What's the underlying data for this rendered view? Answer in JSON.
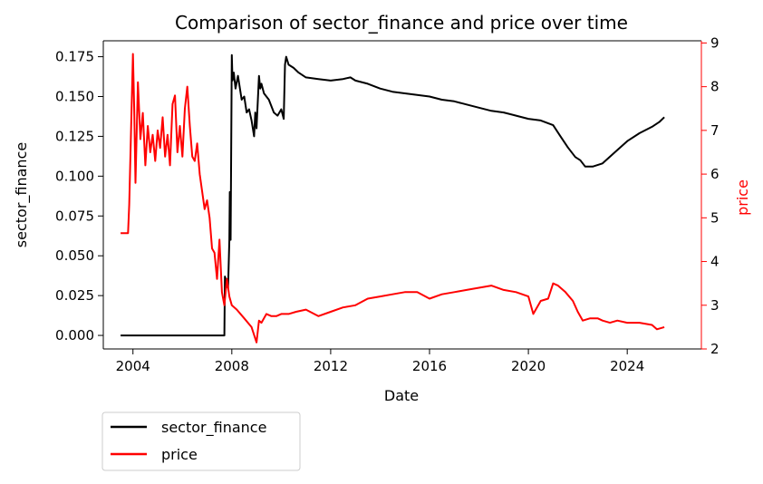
{
  "chart_data": {
    "type": "line",
    "title": "Comparison of sector_finance and price over time",
    "xlabel": "Date",
    "ylabel_left": "sector_finance",
    "ylabel_right": "price",
    "xlim": [
      2002.8,
      2027.0
    ],
    "ylim_left": [
      -0.0085,
      0.185
    ],
    "ylim_right": [
      2.0,
      9.05
    ],
    "x_ticks": [
      "2004",
      "2008",
      "2012",
      "2016",
      "2020",
      "2024"
    ],
    "y_left_ticks": [
      "0.000",
      "0.025",
      "0.050",
      "0.075",
      "0.100",
      "0.125",
      "0.150",
      "0.175"
    ],
    "y_right_ticks": [
      "2",
      "3",
      "4",
      "5",
      "6",
      "7",
      "8",
      "9"
    ],
    "grid": false,
    "legend_position": "below-left",
    "colors": {
      "sector_finance": "#000000",
      "price": "#ff0000",
      "right_axis": "#ff0000"
    },
    "series": [
      {
        "name": "sector_finance",
        "axis": "left",
        "x": [
          2003.5,
          2004.0,
          2005.0,
          2006.0,
          2007.0,
          2007.6,
          2007.7,
          2007.72,
          2007.8,
          2007.85,
          2007.9,
          2007.92,
          2007.95,
          2008.0,
          2008.03,
          2008.08,
          2008.15,
          2008.25,
          2008.4,
          2008.5,
          2008.6,
          2008.7,
          2008.8,
          2008.9,
          2008.95,
          2009.0,
          2009.1,
          2009.15,
          2009.2,
          2009.3,
          2009.5,
          2009.7,
          2009.85,
          2010.0,
          2010.1,
          2010.15,
          2010.2,
          2010.3,
          2010.5,
          2010.7,
          2011.0,
          2011.5,
          2012.0,
          2012.5,
          2012.8,
          2013.0,
          2013.5,
          2014.0,
          2014.5,
          2015.0,
          2015.5,
          2016.0,
          2016.5,
          2017.0,
          2017.5,
          2018.0,
          2018.5,
          2019.0,
          2019.5,
          2020.0,
          2020.5,
          2021.0,
          2021.3,
          2021.6,
          2021.9,
          2022.1,
          2022.3,
          2022.6,
          2023.0,
          2023.5,
          2024.0,
          2024.5,
          2025.0,
          2025.3,
          2025.5
        ],
        "y": [
          0.0,
          0.0,
          0.0,
          0.0,
          0.0,
          0.0,
          0.0,
          0.037,
          0.033,
          0.03,
          0.06,
          0.09,
          0.06,
          0.176,
          0.16,
          0.165,
          0.155,
          0.163,
          0.148,
          0.15,
          0.14,
          0.142,
          0.135,
          0.125,
          0.14,
          0.13,
          0.163,
          0.155,
          0.158,
          0.152,
          0.148,
          0.14,
          0.138,
          0.142,
          0.136,
          0.17,
          0.175,
          0.17,
          0.168,
          0.165,
          0.162,
          0.161,
          0.16,
          0.161,
          0.162,
          0.16,
          0.158,
          0.155,
          0.153,
          0.152,
          0.151,
          0.15,
          0.148,
          0.147,
          0.145,
          0.143,
          0.141,
          0.14,
          0.138,
          0.136,
          0.135,
          0.132,
          0.125,
          0.118,
          0.112,
          0.11,
          0.106,
          0.106,
          0.108,
          0.115,
          0.122,
          0.127,
          0.131,
          0.134,
          0.137
        ]
      },
      {
        "name": "price",
        "axis": "right",
        "x": [
          2003.5,
          2003.8,
          2003.85,
          2004.0,
          2004.05,
          2004.1,
          2004.2,
          2004.3,
          2004.4,
          2004.5,
          2004.6,
          2004.7,
          2004.8,
          2004.9,
          2005.0,
          2005.1,
          2005.2,
          2005.3,
          2005.4,
          2005.5,
          2005.6,
          2005.7,
          2005.8,
          2005.9,
          2006.0,
          2006.1,
          2006.2,
          2006.3,
          2006.4,
          2006.5,
          2006.6,
          2006.7,
          2006.8,
          2006.9,
          2007.0,
          2007.1,
          2007.2,
          2007.3,
          2007.4,
          2007.5,
          2007.6,
          2007.7,
          2007.8,
          2007.9,
          2008.0,
          2008.2,
          2008.5,
          2008.8,
          2009.0,
          2009.1,
          2009.2,
          2009.4,
          2009.6,
          2009.8,
          2010.0,
          2010.3,
          2010.6,
          2011.0,
          2011.5,
          2012.0,
          2012.5,
          2013.0,
          2013.5,
          2014.0,
          2014.5,
          2015.0,
          2015.5,
          2016.0,
          2016.5,
          2017.0,
          2017.5,
          2018.0,
          2018.5,
          2019.0,
          2019.5,
          2020.0,
          2020.2,
          2020.5,
          2020.8,
          2021.0,
          2021.2,
          2021.5,
          2021.8,
          2022.0,
          2022.2,
          2022.5,
          2022.8,
          2023.0,
          2023.3,
          2023.6,
          2024.0,
          2024.5,
          2025.0,
          2025.2,
          2025.5
        ],
        "y": [
          4.65,
          4.65,
          5.3,
          8.75,
          7.5,
          5.8,
          8.1,
          6.8,
          7.4,
          6.2,
          7.1,
          6.5,
          6.9,
          6.3,
          7.0,
          6.6,
          7.3,
          6.4,
          6.9,
          6.2,
          7.6,
          7.8,
          6.5,
          7.1,
          6.4,
          7.5,
          8.0,
          7.1,
          6.4,
          6.3,
          6.7,
          6.0,
          5.6,
          5.2,
          5.4,
          5.0,
          4.3,
          4.2,
          3.6,
          4.5,
          3.3,
          3.0,
          3.6,
          3.2,
          3.0,
          2.9,
          2.7,
          2.5,
          2.15,
          2.65,
          2.6,
          2.8,
          2.75,
          2.75,
          2.8,
          2.8,
          2.85,
          2.9,
          2.75,
          2.85,
          2.95,
          3.0,
          3.15,
          3.2,
          3.25,
          3.3,
          3.3,
          3.15,
          3.25,
          3.3,
          3.35,
          3.4,
          3.45,
          3.35,
          3.3,
          3.2,
          2.8,
          3.1,
          3.15,
          3.5,
          3.45,
          3.3,
          3.1,
          2.85,
          2.65,
          2.7,
          2.7,
          2.65,
          2.6,
          2.65,
          2.6,
          2.6,
          2.55,
          2.45,
          2.5
        ]
      }
    ]
  }
}
